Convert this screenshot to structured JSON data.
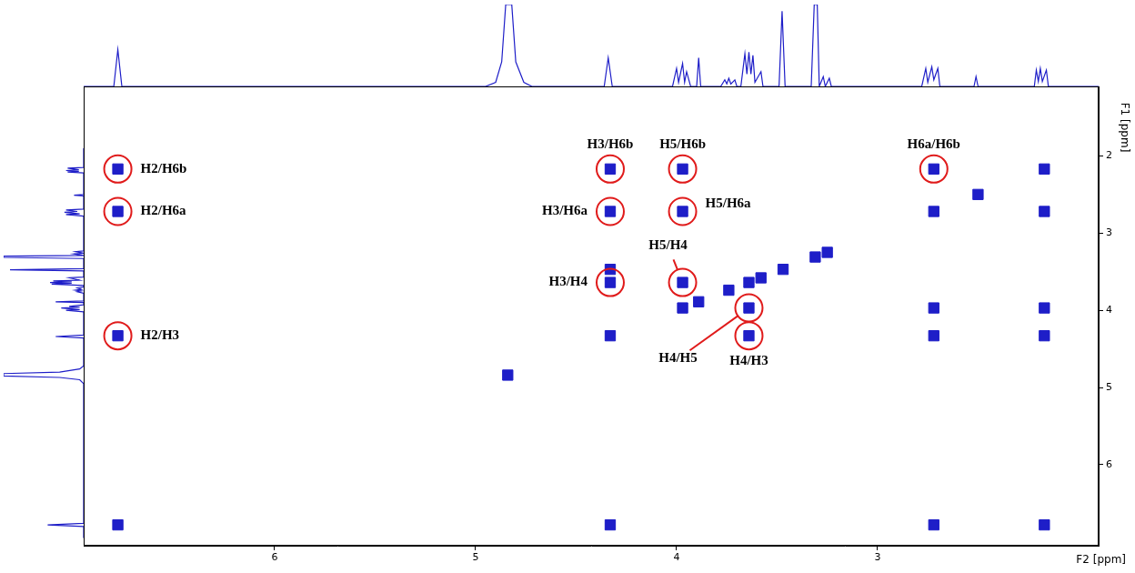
{
  "chart_data": {
    "type": "scatter",
    "x_label": "F2 [ppm]",
    "y_label": "F1 [ppm]",
    "xlim": [
      6.95,
      1.9
    ],
    "ylim": [
      7.05,
      1.1
    ],
    "xticks": [
      6,
      5,
      4,
      3
    ],
    "yticks": [
      6,
      5,
      4,
      3,
      2
    ],
    "grid": false,
    "color": "#1e1ec8",
    "marker": "rect",
    "x": [
      6.78,
      6.78,
      6.78,
      4.33,
      4.33,
      4.33,
      3.97,
      3.97,
      3.97,
      3.64,
      3.64,
      2.72,
      2.17,
      2.72,
      2.17,
      2.72,
      2.17,
      4.33,
      2.72,
      2.17,
      6.78,
      4.84,
      4.33,
      3.97,
      3.89,
      3.74,
      3.64,
      3.58,
      3.47,
      3.31,
      3.25,
      2.72,
      2.5,
      2.17,
      4.33
    ],
    "values": [
      2.17,
      2.72,
      4.33,
      2.17,
      2.72,
      3.64,
      2.17,
      2.72,
      3.64,
      3.97,
      4.33,
      2.17,
      2.72,
      3.97,
      3.97,
      4.33,
      4.33,
      6.78,
      6.78,
      6.78,
      6.78,
      4.84,
      4.33,
      3.97,
      3.89,
      3.74,
      3.64,
      3.58,
      3.47,
      3.31,
      3.25,
      2.72,
      2.5,
      2.17,
      3.47
    ],
    "annotations": [
      {
        "text": "H2/H6b",
        "x": 6.78,
        "y": 2.17
      },
      {
        "text": "H2/H6a",
        "x": 6.78,
        "y": 2.72
      },
      {
        "text": "H2/H3",
        "x": 6.78,
        "y": 4.33
      },
      {
        "text": "H3/H6b",
        "x": 4.33,
        "y": 2.17
      },
      {
        "text": "H3/H6a",
        "x": 4.33,
        "y": 2.72
      },
      {
        "text": "H3/H4",
        "x": 4.33,
        "y": 3.64
      },
      {
        "text": "H5/H6b",
        "x": 3.97,
        "y": 2.17
      },
      {
        "text": "H5/H6a",
        "x": 3.97,
        "y": 2.72
      },
      {
        "text": "H5/H4",
        "x": 3.97,
        "y": 3.64
      },
      {
        "text": "H4/H5",
        "x": 3.64,
        "y": 3.97
      },
      {
        "text": "H4/H3",
        "x": 3.64,
        "y": 4.33
      },
      {
        "text": "H6a/H6b",
        "x": 2.72,
        "y": 2.17
      }
    ],
    "projection": {
      "type": "line",
      "color": "#1e1ec8",
      "line_style": "solid",
      "ylim": [
        0,
        100
      ],
      "x": [
        6.95,
        6.8,
        6.78,
        6.76,
        4.95,
        4.9,
        4.87,
        4.85,
        4.82,
        4.8,
        4.76,
        4.72,
        4.36,
        4.34,
        4.32,
        4.02,
        4.0,
        3.99,
        3.97,
        3.96,
        3.95,
        3.93,
        3.9,
        3.89,
        3.88,
        3.78,
        3.76,
        3.75,
        3.74,
        3.73,
        3.71,
        3.7,
        3.68,
        3.66,
        3.65,
        3.64,
        3.63,
        3.62,
        3.61,
        3.58,
        3.57,
        3.49,
        3.475,
        3.46,
        3.33,
        3.315,
        3.3,
        3.29,
        3.27,
        3.26,
        3.24,
        3.23,
        2.78,
        2.76,
        2.75,
        2.73,
        2.72,
        2.7,
        2.69,
        2.52,
        2.51,
        2.5,
        2.22,
        2.21,
        2.2,
        2.19,
        2.18,
        2.16,
        2.15,
        1.9
      ],
      "values": [
        0,
        0,
        45,
        0,
        0,
        5,
        30,
        100,
        100,
        30,
        5,
        0,
        0,
        35,
        0,
        0,
        22,
        5,
        28,
        5,
        18,
        0,
        0,
        35,
        0,
        0,
        8,
        3,
        10,
        3,
        8,
        0,
        0,
        40,
        15,
        42,
        15,
        38,
        5,
        18,
        0,
        0,
        92,
        0,
        0,
        100,
        100,
        0,
        12,
        0,
        10,
        0,
        0,
        22,
        5,
        24,
        8,
        22,
        0,
        0,
        12,
        0,
        0,
        20,
        6,
        22,
        6,
        20,
        0,
        0
      ]
    }
  }
}
